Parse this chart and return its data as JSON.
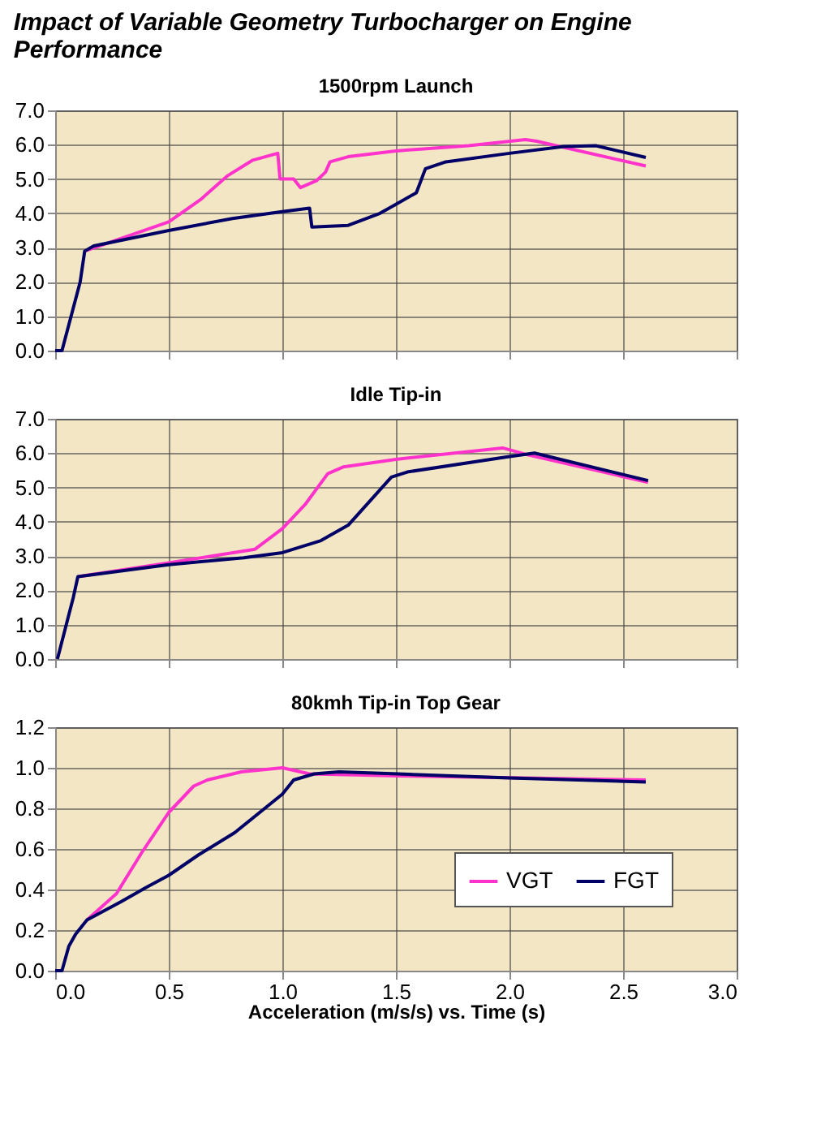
{
  "chart_data": [
    {
      "type": "line",
      "title": "1500rpm Launch",
      "annotations": [
        "Impact of Variable Geometry Turbocharger on Engine Performance"
      ],
      "xlim": [
        0,
        3
      ],
      "xticks": [
        0,
        0.5,
        1,
        1.5,
        2,
        2.5,
        3
      ],
      "ylim": [
        0,
        7
      ],
      "yticks": [
        {
          "value": 0,
          "label": "0.0"
        },
        {
          "value": 1,
          "label": "1.0"
        },
        {
          "value": 2,
          "label": "2.0"
        },
        {
          "value": 3,
          "label": "3.0"
        },
        {
          "value": 4,
          "label": "4.0"
        },
        {
          "value": 5,
          "label": "5.0"
        },
        {
          "value": 6,
          "label": "6.0"
        },
        {
          "value": 7,
          "label": "7.0"
        }
      ],
      "grid": true,
      "tick_labels": "y",
      "line_style": "solid",
      "marker": "none",
      "series": [
        {
          "color": "#ff33cc",
          "x": [
            0.13,
            0.5,
            0.64,
            0.76,
            0.87,
            0.98,
            0.99,
            1.05,
            1.08,
            1.15,
            1.19,
            1.21,
            1.29,
            1.5,
            1.82,
            2.07,
            2.12,
            2.6
          ],
          "values": [
            2.9,
            3.75,
            4.4,
            5.1,
            5.55,
            5.75,
            5.0,
            5.0,
            4.75,
            4.95,
            5.2,
            5.5,
            5.65,
            5.82,
            5.97,
            6.15,
            6.1,
            5.38
          ]
        },
        {
          "color": "#000066",
          "x": [
            0.0,
            0.03,
            0.11,
            0.13,
            0.17,
            0.5,
            0.78,
            1.0,
            1.12,
            1.13,
            1.29,
            1.43,
            1.59,
            1.63,
            1.72,
            2.0,
            2.24,
            2.38,
            2.6
          ],
          "values": [
            0,
            0,
            2.0,
            2.9,
            3.05,
            3.5,
            3.85,
            4.05,
            4.15,
            3.6,
            3.65,
            4.0,
            4.6,
            5.3,
            5.5,
            5.75,
            5.95,
            5.97,
            5.63
          ]
        }
      ]
    },
    {
      "type": "line",
      "title": "Idle Tip-in",
      "xlim": [
        0,
        3
      ],
      "xticks": [
        0,
        0.5,
        1,
        1.5,
        2,
        2.5,
        3
      ],
      "ylim": [
        0,
        7
      ],
      "yticks": [
        {
          "value": 0,
          "label": "0.0"
        },
        {
          "value": 1,
          "label": "1.0"
        },
        {
          "value": 2,
          "label": "2.0"
        },
        {
          "value": 3,
          "label": "3.0"
        },
        {
          "value": 4,
          "label": "4.0"
        },
        {
          "value": 5,
          "label": "5.0"
        },
        {
          "value": 6,
          "label": "6.0"
        },
        {
          "value": 7,
          "label": "7.0"
        }
      ],
      "grid": true,
      "tick_labels": "y",
      "line_style": "solid",
      "marker": "none",
      "series": [
        {
          "color": "#ff33cc",
          "x": [
            0.1,
            0.5,
            0.88,
            1.0,
            1.1,
            1.2,
            1.27,
            1.5,
            1.97,
            2.08,
            2.61
          ],
          "values": [
            2.4,
            2.8,
            3.2,
            3.8,
            4.5,
            5.4,
            5.6,
            5.82,
            6.15,
            5.95,
            5.15
          ]
        },
        {
          "color": "#000066",
          "x": [
            0.01,
            0.08,
            0.1,
            0.5,
            0.83,
            1.0,
            1.17,
            1.29,
            1.48,
            1.55,
            2.0,
            2.11,
            2.61
          ],
          "values": [
            0,
            1.8,
            2.4,
            2.75,
            2.95,
            3.1,
            3.45,
            3.9,
            5.3,
            5.45,
            5.9,
            6.0,
            5.2
          ]
        }
      ]
    },
    {
      "type": "line",
      "title": "80kmh Tip-in Top Gear",
      "xlabel": "Acceleration (m/s/s) vs. Time (s)",
      "xlim": [
        0,
        3
      ],
      "xticks": [
        {
          "value": 0,
          "label": "0.0"
        },
        0.5,
        {
          "value": 1,
          "label": "1.0"
        },
        1.5,
        {
          "value": 2,
          "label": "2.0"
        },
        2.5,
        {
          "value": 3,
          "label": "3.0"
        }
      ],
      "ylim": [
        0,
        1.2
      ],
      "yticks": [
        {
          "value": 0,
          "label": "0.0"
        },
        0.2,
        0.4,
        0.6,
        0.8,
        {
          "value": 1,
          "label": "1.0"
        },
        1.2
      ],
      "grid": true,
      "legend": "bottom right",
      "line_style": "solid",
      "marker": "none",
      "series": [
        {
          "name": "VGT",
          "color": "#ff33cc",
          "x": [
            0.14,
            0.27,
            0.38,
            0.5,
            0.61,
            0.67,
            0.82,
            1.0,
            1.12,
            1.51,
            2.6
          ],
          "values": [
            0.25,
            0.38,
            0.58,
            0.78,
            0.91,
            0.94,
            0.98,
            1.0,
            0.97,
            0.96,
            0.94
          ]
        },
        {
          "name": "FGT",
          "color": "#000066",
          "x": [
            0.0,
            0.03,
            0.06,
            0.09,
            0.14,
            0.29,
            0.4,
            0.5,
            0.63,
            0.79,
            1.0,
            1.05,
            1.14,
            1.25,
            1.51,
            2.0,
            2.6
          ],
          "values": [
            0,
            0,
            0.12,
            0.18,
            0.25,
            0.34,
            0.41,
            0.47,
            0.57,
            0.68,
            0.87,
            0.94,
            0.97,
            0.98,
            0.97,
            0.95,
            0.93
          ]
        }
      ]
    }
  ]
}
